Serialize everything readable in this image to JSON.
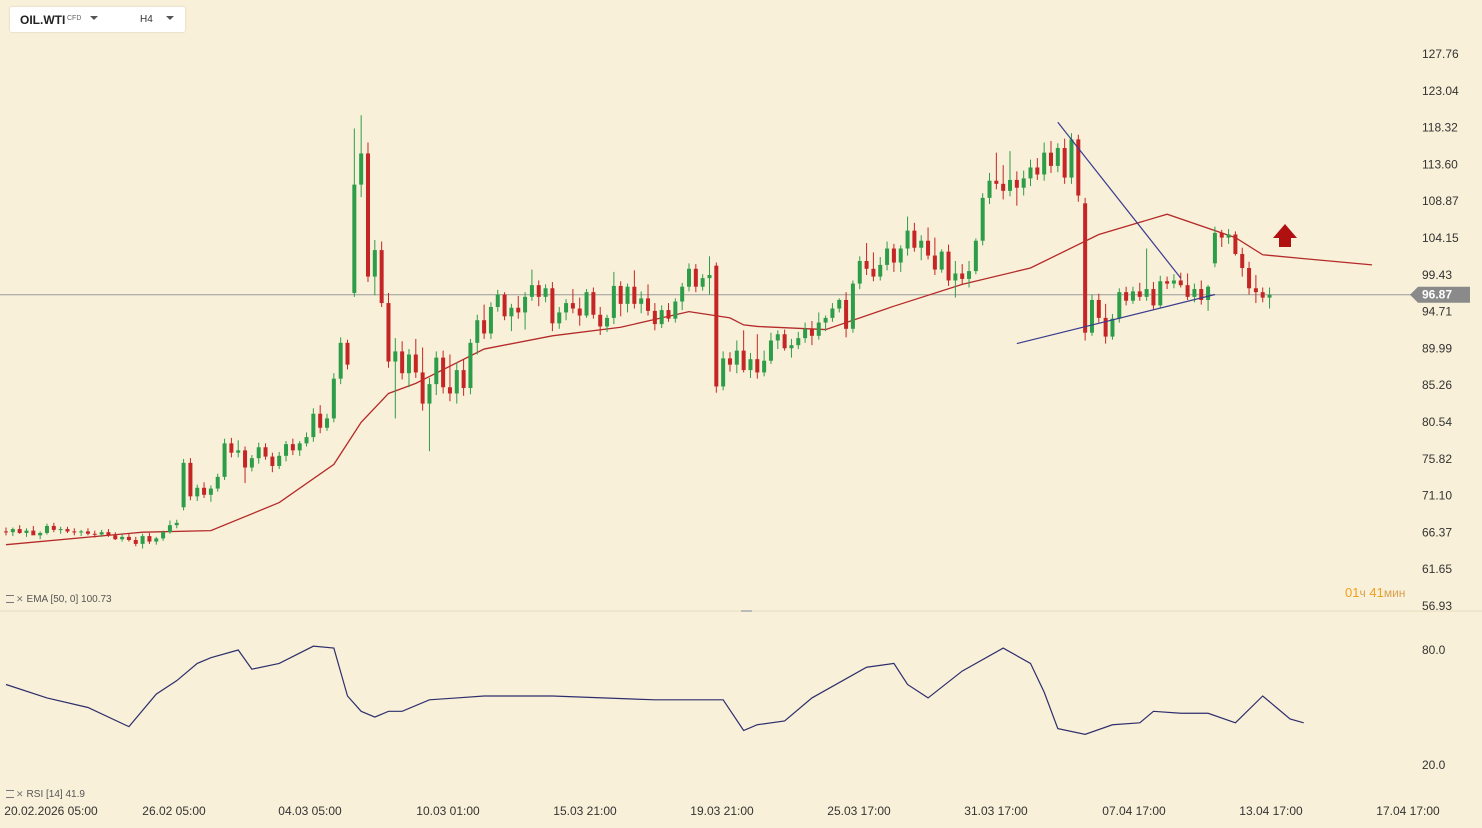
{
  "toolbar": {
    "symbol": "OIL.WTI",
    "symbol_type": "CFD",
    "timeframe": "H4"
  },
  "indicators": {
    "ema_label": "EMA [50, 0] 100.73",
    "rsi_label": "RSI [14] 41.9"
  },
  "timer": {
    "hours": "01",
    "hours_unit": "ч",
    "minutes": "41",
    "minutes_unit": "мин"
  },
  "colors": {
    "background": "#f8f0d8",
    "bull": "#2e9d4a",
    "bear": "#c42525",
    "ema": "#b52a2a",
    "rsi": "#2e2e6e",
    "trendline": "#3b3b8f",
    "arrow": "#b01010",
    "price_tag": "#8a8a8a"
  },
  "icons": {
    "up_arrow": "up-arrow-icon"
  },
  "chart_data": [
    {
      "type": "candlestick",
      "name": "OIL.WTI H4",
      "price_axis": [
        "127.76",
        "123.04",
        "118.32",
        "113.60",
        "108.87",
        "104.15",
        "99.43",
        "94.71",
        "89.99",
        "85.26",
        "80.54",
        "75.82",
        "71.10",
        "66.37",
        "61.65",
        "56.93"
      ],
      "ylim": [
        56.93,
        127.76
      ],
      "current_price": "96.87",
      "x_labels": [
        "20.02.2026 05:00",
        "26.02 05:00",
        "04.03 05:00",
        "10.03 01:00",
        "15.03 21:00",
        "19.03 21:00",
        "25.03 17:00",
        "31.03 17:00",
        "07.04 17:00",
        "13.04 17:00",
        "17.04 17:00"
      ],
      "ohlc": [
        [
          66.5,
          67.0,
          66.0,
          66.4
        ],
        [
          66.4,
          67.0,
          65.9,
          66.8
        ],
        [
          66.8,
          67.3,
          66.2,
          66.3
        ],
        [
          66.3,
          66.9,
          65.8,
          66.6
        ],
        [
          66.6,
          67.2,
          66.1,
          66.0
        ],
        [
          66.0,
          66.5,
          65.5,
          66.3
        ],
        [
          66.3,
          67.5,
          66.1,
          67.2
        ],
        [
          67.2,
          67.6,
          66.4,
          66.7
        ],
        [
          66.7,
          67.1,
          66.2,
          66.8
        ],
        [
          66.8,
          67.1,
          66.3,
          66.5
        ],
        [
          66.5,
          66.9,
          66.0,
          66.4
        ],
        [
          66.4,
          66.7,
          65.9,
          66.5
        ],
        [
          66.5,
          66.9,
          66.0,
          66.2
        ],
        [
          66.2,
          66.6,
          65.7,
          66.1
        ],
        [
          66.1,
          66.7,
          65.8,
          66.4
        ],
        [
          66.4,
          66.8,
          65.8,
          66.0
        ],
        [
          66.0,
          66.4,
          65.4,
          65.5
        ],
        [
          65.5,
          66.1,
          65.2,
          65.8
        ],
        [
          65.8,
          66.2,
          65.2,
          65.4
        ],
        [
          65.4,
          65.8,
          64.6,
          64.9
        ],
        [
          64.9,
          66.2,
          64.3,
          65.9
        ],
        [
          65.9,
          66.3,
          64.9,
          65.2
        ],
        [
          65.2,
          65.8,
          64.8,
          65.6
        ],
        [
          65.6,
          66.6,
          65.3,
          66.4
        ],
        [
          66.4,
          67.9,
          66.2,
          67.3
        ],
        [
          67.3,
          68.0,
          66.9,
          67.6
        ],
        [
          69.6,
          75.8,
          69.2,
          75.3
        ],
        [
          75.3,
          75.9,
          70.5,
          71.0
        ],
        [
          71.0,
          72.5,
          70.4,
          72.1
        ],
        [
          72.1,
          72.8,
          70.8,
          71.2
        ],
        [
          71.2,
          72.4,
          70.3,
          72.0
        ],
        [
          72.0,
          73.9,
          71.6,
          73.5
        ],
        [
          73.5,
          78.4,
          73.1,
          77.8
        ],
        [
          77.8,
          78.5,
          76.0,
          76.6
        ],
        [
          76.6,
          78.2,
          76.0,
          76.9
        ],
        [
          76.9,
          77.4,
          72.7,
          74.7
        ],
        [
          74.7,
          76.3,
          74.2,
          75.9
        ],
        [
          75.9,
          77.9,
          75.2,
          77.3
        ],
        [
          77.3,
          77.8,
          75.7,
          76.1
        ],
        [
          76.1,
          76.6,
          74.1,
          74.9
        ],
        [
          74.9,
          76.7,
          74.5,
          76.2
        ],
        [
          76.2,
          78.1,
          75.5,
          77.7
        ],
        [
          77.7,
          78.4,
          76.3,
          76.9
        ],
        [
          76.9,
          78.1,
          76.2,
          77.8
        ],
        [
          77.8,
          79.2,
          77.4,
          78.6
        ],
        [
          78.6,
          82.3,
          78.0,
          81.6
        ],
        [
          81.6,
          82.7,
          79.1,
          79.8
        ],
        [
          79.8,
          81.6,
          79.4,
          81.0
        ],
        [
          81.0,
          86.8,
          80.5,
          86.1
        ],
        [
          86.1,
          91.4,
          85.4,
          90.7
        ],
        [
          90.7,
          91.1,
          87.3,
          87.9
        ],
        [
          97.1,
          118.2,
          96.6,
          111.0
        ],
        [
          111.0,
          119.9,
          109.4,
          115.0
        ],
        [
          115.0,
          116.4,
          98.5,
          99.2
        ],
        [
          99.2,
          103.9,
          96.8,
          102.6
        ],
        [
          102.6,
          103.7,
          95.3,
          95.8
        ],
        [
          95.8,
          97.1,
          87.5,
          88.3
        ],
        [
          88.3,
          91.3,
          81.0,
          89.6
        ],
        [
          89.6,
          90.9,
          86.0,
          86.8
        ],
        [
          86.8,
          89.9,
          85.0,
          89.2
        ],
        [
          89.2,
          91.2,
          86.2,
          86.9
        ],
        [
          86.9,
          90.1,
          82.0,
          82.9
        ],
        [
          82.9,
          86.2,
          76.8,
          85.4
        ],
        [
          85.4,
          89.6,
          84.0,
          88.8
        ],
        [
          88.8,
          89.7,
          84.2,
          85.0
        ],
        [
          85.0,
          89.2,
          83.2,
          84.2
        ],
        [
          84.2,
          88.2,
          82.9,
          87.2
        ],
        [
          87.2,
          88.5,
          83.9,
          84.9
        ],
        [
          84.9,
          91.2,
          84.1,
          90.7
        ],
        [
          90.7,
          94.3,
          89.2,
          93.6
        ],
        [
          93.6,
          95.6,
          91.2,
          91.9
        ],
        [
          91.9,
          95.9,
          91.2,
          95.3
        ],
        [
          95.3,
          97.5,
          94.7,
          96.9
        ],
        [
          96.9,
          97.2,
          93.6,
          94.1
        ],
        [
          94.1,
          95.7,
          92.2,
          95.2
        ],
        [
          95.2,
          96.7,
          93.8,
          94.6
        ],
        [
          94.6,
          97.2,
          92.4,
          96.6
        ],
        [
          96.6,
          100.1,
          96.1,
          98.1
        ],
        [
          98.1,
          98.7,
          95.4,
          96.6
        ],
        [
          96.6,
          98.2,
          95.9,
          97.7
        ],
        [
          97.7,
          98.5,
          92.2,
          93.2
        ],
        [
          93.2,
          95.3,
          92.5,
          94.6
        ],
        [
          94.6,
          96.3,
          93.6,
          95.8
        ],
        [
          95.8,
          97.6,
          94.5,
          95.1
        ],
        [
          95.1,
          96.5,
          92.9,
          94.2
        ],
        [
          94.2,
          97.6,
          93.9,
          97.2
        ],
        [
          97.2,
          97.8,
          93.8,
          94.3
        ],
        [
          94.3,
          95.3,
          91.7,
          92.8
        ],
        [
          92.8,
          94.3,
          92.1,
          93.9
        ],
        [
          93.9,
          99.8,
          93.1,
          98.0
        ],
        [
          98.0,
          98.6,
          94.1,
          95.7
        ],
        [
          95.7,
          98.3,
          94.6,
          97.9
        ],
        [
          97.9,
          100.0,
          95.1,
          95.7
        ],
        [
          95.7,
          97.3,
          94.5,
          96.4
        ],
        [
          96.4,
          98.2,
          94.2,
          94.8
        ],
        [
          94.8,
          95.8,
          92.3,
          93.1
        ],
        [
          93.1,
          95.5,
          92.6,
          94.9
        ],
        [
          94.9,
          95.8,
          93.4,
          93.8
        ],
        [
          93.8,
          96.4,
          93.3,
          96.0
        ],
        [
          96.0,
          98.4,
          94.9,
          97.9
        ],
        [
          97.9,
          100.9,
          97.3,
          100.2
        ],
        [
          100.2,
          100.8,
          97.2,
          97.9
        ],
        [
          97.9,
          99.5,
          97.4,
          99.0
        ],
        [
          99.0,
          101.8,
          96.9,
          99.4
        ],
        [
          100.6,
          101.0,
          84.3,
          85.1
        ],
        [
          85.1,
          89.6,
          84.6,
          88.7
        ],
        [
          88.7,
          89.5,
          87.0,
          87.9
        ],
        [
          87.9,
          91.0,
          86.8,
          89.7
        ],
        [
          89.7,
          92.3,
          86.9,
          87.2
        ],
        [
          87.2,
          89.4,
          86.2,
          88.6
        ],
        [
          88.6,
          91.8,
          86.1,
          86.9
        ],
        [
          86.9,
          89.7,
          86.4,
          88.4
        ],
        [
          88.4,
          92.0,
          88.0,
          91.0
        ],
        [
          91.0,
          92.3,
          89.9,
          91.8
        ],
        [
          91.8,
          92.4,
          89.7,
          90.0
        ],
        [
          90.0,
          91.2,
          88.8,
          90.4
        ],
        [
          90.4,
          92.1,
          89.9,
          91.3
        ],
        [
          91.3,
          93.3,
          90.7,
          92.5
        ],
        [
          92.5,
          93.5,
          90.4,
          91.6
        ],
        [
          91.6,
          94.6,
          91.1,
          93.3
        ],
        [
          93.3,
          94.2,
          92.2,
          93.9
        ],
        [
          93.9,
          95.8,
          93.4,
          95.1
        ],
        [
          95.1,
          96.4,
          94.6,
          96.2
        ],
        [
          96.2,
          97.2,
          91.4,
          92.5
        ],
        [
          92.5,
          98.7,
          92.0,
          98.3
        ],
        [
          98.3,
          101.8,
          97.6,
          101.2
        ],
        [
          101.2,
          103.5,
          99.4,
          100.2
        ],
        [
          100.2,
          102.3,
          98.6,
          99.2
        ],
        [
          99.2,
          101.7,
          98.7,
          100.7
        ],
        [
          100.7,
          103.7,
          100.0,
          102.8
        ],
        [
          102.8,
          103.4,
          99.8,
          101.0
        ],
        [
          101.0,
          103.2,
          99.8,
          102.8
        ],
        [
          102.8,
          106.9,
          101.9,
          105.1
        ],
        [
          105.1,
          106.1,
          102.4,
          102.9
        ],
        [
          102.9,
          104.5,
          101.3,
          103.8
        ],
        [
          103.8,
          105.5,
          101.4,
          101.9
        ],
        [
          101.9,
          104.2,
          99.4,
          100.1
        ],
        [
          100.1,
          102.7,
          99.7,
          102.4
        ],
        [
          102.4,
          103.3,
          98.0,
          98.7
        ],
        [
          98.7,
          101.2,
          96.5,
          99.6
        ],
        [
          99.6,
          100.8,
          98.2,
          98.9
        ],
        [
          98.9,
          101.2,
          97.8,
          99.9
        ],
        [
          99.9,
          104.1,
          99.5,
          103.8
        ],
        [
          103.8,
          109.9,
          103.2,
          109.3
        ],
        [
          109.3,
          112.5,
          108.5,
          111.5
        ],
        [
          111.5,
          115.1,
          110.4,
          111.1
        ],
        [
          111.1,
          113.5,
          109.1,
          110.2
        ],
        [
          110.2,
          115.3,
          109.5,
          111.6
        ],
        [
          111.6,
          112.7,
          108.3,
          110.6
        ],
        [
          110.6,
          112.8,
          109.6,
          111.8
        ],
        [
          111.8,
          114.2,
          110.8,
          113.2
        ],
        [
          113.2,
          114.4,
          111.6,
          112.3
        ],
        [
          112.3,
          116.4,
          111.5,
          115.1
        ],
        [
          115.1,
          116.6,
          112.5,
          113.4
        ],
        [
          113.4,
          116.3,
          112.6,
          115.7
        ],
        [
          115.7,
          116.9,
          111.1,
          111.9
        ],
        [
          111.9,
          117.6,
          111.1,
          116.8
        ],
        [
          116.8,
          117.4,
          108.8,
          109.6
        ],
        [
          108.6,
          109.3,
          91.0,
          92.0
        ],
        [
          92.0,
          96.9,
          91.6,
          96.2
        ],
        [
          96.2,
          97.0,
          93.3,
          93.9
        ],
        [
          93.9,
          95.7,
          90.6,
          91.5
        ],
        [
          91.5,
          94.4,
          91.1,
          93.8
        ],
        [
          93.8,
          97.7,
          93.3,
          97.2
        ],
        [
          97.2,
          97.9,
          95.5,
          96.1
        ],
        [
          96.1,
          97.9,
          95.7,
          97.3
        ],
        [
          97.3,
          98.4,
          96.1,
          96.6
        ],
        [
          96.6,
          102.8,
          96.1,
          97.6
        ],
        [
          97.6,
          98.5,
          94.9,
          95.5
        ],
        [
          95.5,
          99.3,
          95.1,
          98.6
        ],
        [
          98.6,
          99.2,
          97.6,
          98.3
        ],
        [
          98.3,
          99.5,
          97.7,
          98.7
        ],
        [
          98.7,
          99.7,
          97.8,
          98.1
        ],
        [
          98.1,
          99.6,
          96.2,
          96.6
        ],
        [
          96.6,
          98.3,
          95.9,
          97.6
        ],
        [
          97.6,
          98.7,
          95.6,
          96.2
        ],
        [
          96.2,
          98.1,
          94.8,
          97.9
        ],
        [
          100.9,
          105.6,
          100.4,
          104.8
        ],
        [
          104.8,
          105.2,
          103.0,
          104.2
        ],
        [
          104.2,
          105.3,
          103.4,
          104.6
        ],
        [
          104.6,
          105.0,
          101.9,
          102.1
        ],
        [
          102.1,
          102.9,
          99.2,
          100.3
        ],
        [
          100.3,
          101.1,
          96.9,
          97.7
        ],
        [
          97.7,
          99.4,
          95.8,
          97.2
        ],
        [
          97.2,
          97.8,
          95.9,
          96.5
        ],
        [
          96.5,
          97.8,
          95.1,
          96.87
        ]
      ]
    },
    {
      "type": "line",
      "name": "EMA [50, 0]",
      "value_label": "100.73",
      "x": [
        0,
        20,
        30,
        40,
        48,
        52,
        56,
        60,
        70,
        80,
        90,
        100,
        106,
        108,
        110,
        120,
        130,
        140,
        150,
        160,
        170,
        180,
        184,
        190,
        200
      ],
      "y": [
        64.8,
        66.4,
        66.6,
        70.2,
        75.1,
        80.5,
        84.2,
        85.5,
        89.9,
        91.6,
        92.7,
        94.7,
        93.9,
        93.0,
        92.8,
        92.4,
        95.4,
        98.2,
        100.3,
        104.6,
        107.2,
        104.2,
        102.0,
        101.5,
        100.7
      ]
    },
    {
      "type": "line",
      "name": "RSI [14]",
      "value_label": "41.9",
      "ylim": [
        0,
        100
      ],
      "y_ticks": [
        "80.0",
        "20.0"
      ],
      "x": [
        0,
        6,
        12,
        18,
        22,
        25,
        28,
        30,
        34,
        36,
        40,
        45,
        48,
        50,
        52,
        54,
        56,
        58,
        62,
        66,
        70,
        80,
        95,
        105,
        108,
        110,
        114,
        118,
        126,
        130,
        132,
        135,
        140,
        146,
        150,
        152,
        154,
        158,
        162,
        166,
        168,
        172,
        176,
        180,
        184,
        186,
        188,
        190
      ],
      "y": [
        62,
        55,
        50,
        40,
        57,
        64,
        73,
        76,
        80,
        70,
        73,
        82,
        81,
        56,
        48,
        45,
        48,
        48,
        54,
        55,
        56,
        56,
        54,
        54,
        38,
        41,
        43,
        55,
        71,
        73,
        62,
        55,
        69,
        81,
        73,
        58,
        39,
        36,
        41,
        42,
        48,
        47,
        47,
        42,
        56,
        50,
        44,
        42
      ]
    },
    {
      "type": "line",
      "name": "trendlines",
      "x": [
        [
          154,
          172
        ],
        [
          148,
          177
        ]
      ],
      "y": [
        [
          119.0,
          99.0
        ],
        [
          90.6,
          96.9
        ]
      ]
    }
  ]
}
